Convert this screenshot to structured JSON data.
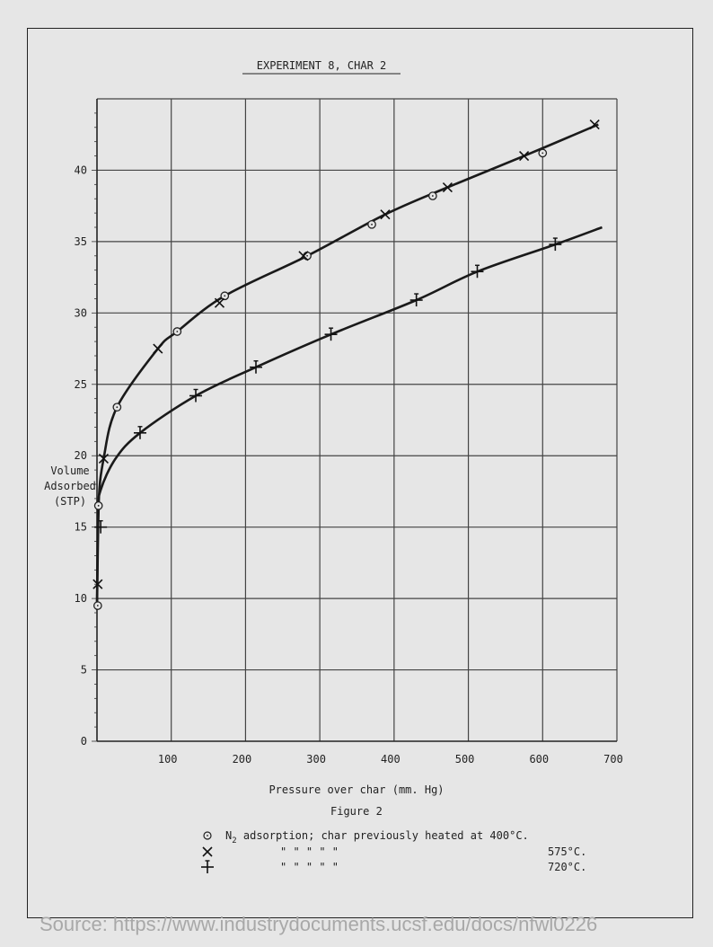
{
  "page": {
    "title": "EXPERIMENT 8, CHAR 2",
    "figure_label": "Figure 2",
    "source": "Source: https://www.industrydocuments.ucsf.edu/docs/nfwl0226"
  },
  "legend": {
    "rows": [
      {
        "symbol": "circle",
        "prefix": "N",
        "subscript": "2",
        "text": " adsorption; char previously heated at 400°C."
      },
      {
        "symbol": "x",
        "ditto": "\"          \"          \"          \"   \"",
        "temp": "575°C."
      },
      {
        "symbol": "plus",
        "ditto": "\"          \"          \"          \"   \"",
        "temp": "720°C."
      }
    ]
  },
  "chart_data": {
    "type": "scatter",
    "title": "EXPERIMENT 8, CHAR 2",
    "xlabel": "Pressure over char (mm. Hg)",
    "ylabel_lines": [
      "Volume",
      "Adsorbed",
      "(STP)"
    ],
    "xlim": [
      0,
      700
    ],
    "ylim": [
      0,
      45
    ],
    "xticks": [
      100,
      200,
      300,
      400,
      500,
      600,
      700
    ],
    "yticks": [
      0,
      5,
      10,
      15,
      20,
      25,
      30,
      35,
      40
    ],
    "grid": true,
    "series": [
      {
        "temp": "400°C",
        "marker": "circle",
        "points": [
          [
            1,
            9.5
          ],
          [
            2,
            16.5
          ],
          [
            27,
            23.4
          ],
          [
            108,
            28.7
          ],
          [
            172,
            31.2
          ],
          [
            283,
            34.0
          ],
          [
            370,
            36.2
          ],
          [
            452,
            38.2
          ],
          [
            600,
            41.2
          ]
        ]
      },
      {
        "temp": "575°C",
        "marker": "x",
        "points": [
          [
            1,
            11.0
          ],
          [
            9,
            19.8
          ],
          [
            82,
            27.5
          ],
          [
            165,
            30.7
          ],
          [
            278,
            34.0
          ],
          [
            388,
            36.9
          ],
          [
            472,
            38.8
          ],
          [
            575,
            41.0
          ],
          [
            670,
            43.2
          ]
        ]
      },
      {
        "temp": "720°C",
        "marker": "plus",
        "points": [
          [
            5,
            15.0
          ],
          [
            58,
            21.6
          ],
          [
            133,
            24.2
          ],
          [
            214,
            26.2
          ],
          [
            315,
            28.5
          ],
          [
            430,
            30.9
          ],
          [
            512,
            32.9
          ],
          [
            617,
            34.8
          ]
        ]
      }
    ],
    "curves": [
      {
        "name": "upper",
        "points": [
          [
            0,
            9.5
          ],
          [
            2,
            16.5
          ],
          [
            9,
            19.8
          ],
          [
            27,
            23.4
          ],
          [
            82,
            27.5
          ],
          [
            108,
            28.7
          ],
          [
            172,
            31.2
          ],
          [
            283,
            34.0
          ],
          [
            388,
            36.9
          ],
          [
            472,
            38.8
          ],
          [
            575,
            41.0
          ],
          [
            675,
            43.2
          ]
        ]
      },
      {
        "name": "lower",
        "points": [
          [
            0,
            9.2
          ],
          [
            2,
            16.0
          ],
          [
            5,
            17.6
          ],
          [
            25,
            19.8
          ],
          [
            58,
            21.6
          ],
          [
            133,
            24.2
          ],
          [
            214,
            26.2
          ],
          [
            315,
            28.5
          ],
          [
            430,
            30.9
          ],
          [
            512,
            32.9
          ],
          [
            617,
            34.8
          ],
          [
            680,
            36.0
          ]
        ]
      }
    ]
  }
}
